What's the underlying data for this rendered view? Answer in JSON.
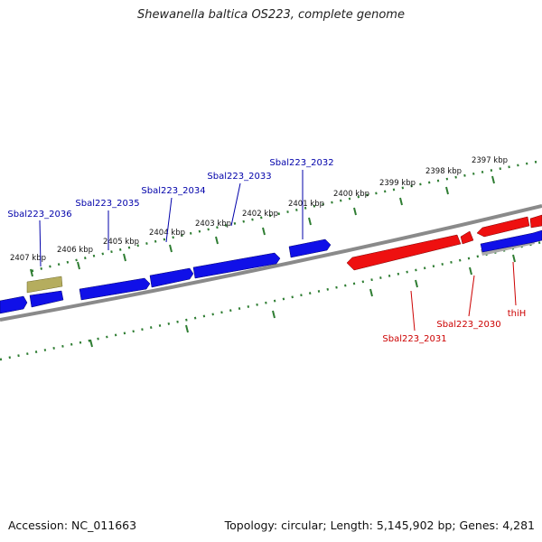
{
  "title": "Shewanella baltica OS223, complete genome",
  "accession": "Accession: NC_011663",
  "summary": "Topology: circular; Length: 5,145,902 bp; Genes: 4,281",
  "colors": {
    "forward_strand": "#0000ee",
    "reverse_strand": "#ee0000",
    "pseudo": "#b5ad5e",
    "backbone": "#7f7f7f",
    "ticks": "#2e7d32",
    "forward_label": "#0000aa",
    "reverse_label": "#cc0000"
  },
  "kbp_labels": [
    "2397 kbp",
    "2398 kbp",
    "2399 kbp",
    "2400 kbp",
    "2401 kbp",
    "2402 kbp",
    "2403 kbp",
    "2404 kbp",
    "2405 kbp",
    "2406 kbp",
    "2407 kbp"
  ],
  "forward_gene_labels": [
    "Sbal223_2032",
    "Sbal223_2033",
    "Sbal223_2034",
    "Sbal223_2035",
    "Sbal223_2036"
  ],
  "reverse_gene_labels": [
    "Sbal223_2031",
    "Sbal223_2030",
    "thiH"
  ]
}
